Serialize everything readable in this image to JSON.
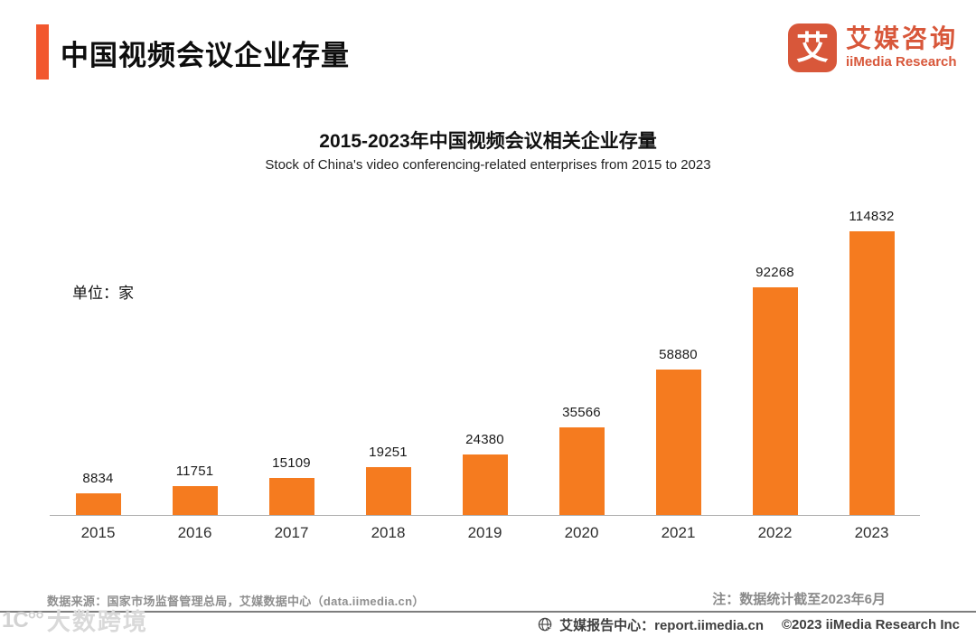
{
  "header": {
    "title": "中国视频会议企业存量",
    "logo": {
      "glyph": "艾",
      "name_cn": "艾媒咨询",
      "name_en": "iiMedia Research"
    }
  },
  "chart_data": {
    "type": "bar",
    "title": "2015-2023年中国视频会议相关企业存量",
    "subtitle": "Stock of China's video conferencing-related enterprises from 2015 to 2023",
    "unit_label": "单位：家",
    "categories": [
      "2015",
      "2016",
      "2017",
      "2018",
      "2019",
      "2020",
      "2021",
      "2022",
      "2023"
    ],
    "values": [
      8834,
      11751,
      15109,
      19251,
      24380,
      35566,
      58880,
      92268,
      114832
    ],
    "xlabel": "",
    "ylabel": "单位：家",
    "ylim": [
      0,
      114832
    ],
    "grid": false,
    "legend": "none",
    "bar_color": "#F57B1F",
    "value_labels_shown": true
  },
  "footnotes": {
    "source": "数据来源：国家市场监督管理总局，艾媒数据中心（data.iimedia.cn）",
    "note": "注：数据统计截至2023年6月"
  },
  "footer": {
    "report_center": "艾媒报告中心：report.iimedia.cn",
    "copyright": "©2023  iiMedia Research  Inc",
    "globe_icon": "globe-cursor-icon"
  },
  "watermark": {
    "logo_glyph": "1C°°",
    "text": "大数跨境"
  },
  "colors": {
    "accent_bar": "#F2572E",
    "logo_orange": "#D8573A",
    "bar_orange": "#F57B1F",
    "axis_line": "#b3b3b3",
    "footnote_gray": "#8f8f8f",
    "footer_text": "#3f3f3f"
  }
}
